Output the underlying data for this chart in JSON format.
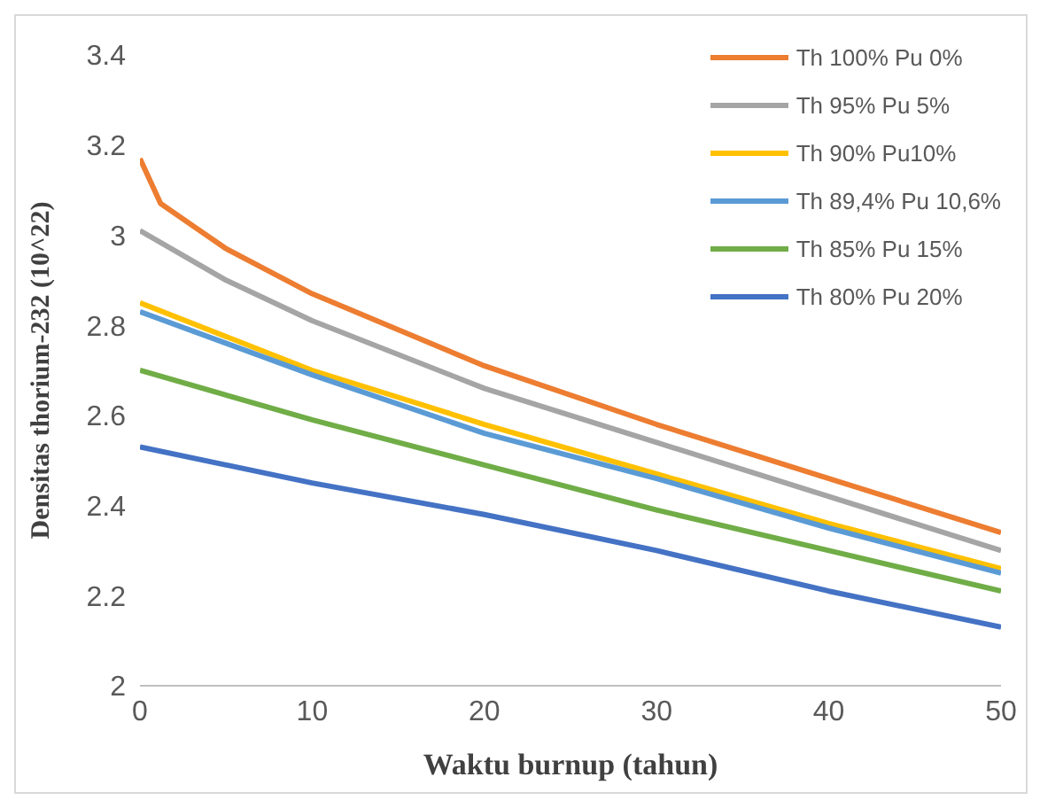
{
  "chart_data": {
    "type": "line",
    "xlabel": "Waktu burnup  (tahun)",
    "ylabel": "Densitas thorium-232  (10^22)",
    "xlim": [
      0,
      50
    ],
    "xticks": [
      0,
      10,
      20,
      30,
      40,
      50
    ],
    "ylim": [
      2,
      3.4
    ],
    "yticks": [
      2,
      2.2,
      2.4,
      2.6,
      2.8,
      3,
      3.2,
      3.4
    ],
    "grid": false,
    "legend": "top right",
    "marker": "none",
    "line_style": "solid",
    "series": [
      {
        "name": "Th 100%  Pu 0%",
        "color": "#ed7d31",
        "x": [
          0,
          1.2,
          5,
          10,
          20,
          30,
          40,
          50
        ],
        "values": [
          3.17,
          3.07,
          2.97,
          2.87,
          2.71,
          2.58,
          2.46,
          2.34
        ]
      },
      {
        "name": "Th 95%  Pu 5%",
        "color": "#a5a5a5",
        "x": [
          0,
          5,
          10,
          20,
          30,
          40,
          50
        ],
        "values": [
          3.01,
          2.9,
          2.81,
          2.66,
          2.54,
          2.42,
          2.3
        ]
      },
      {
        "name": "Th 90%  Pu10%",
        "color": "#ffc000",
        "x": [
          0,
          10,
          20,
          30,
          40,
          50
        ],
        "values": [
          2.85,
          2.7,
          2.58,
          2.47,
          2.36,
          2.26
        ]
      },
      {
        "name": "Th 89,4% Pu 10,6%",
        "color": "#5b9bd5",
        "x": [
          0,
          10,
          20,
          30,
          40,
          50
        ],
        "values": [
          2.83,
          2.69,
          2.56,
          2.46,
          2.35,
          2.25
        ]
      },
      {
        "name": "Th 85%  Pu 15%",
        "color": "#70ad47",
        "x": [
          0,
          10,
          20,
          30,
          40,
          50
        ],
        "values": [
          2.7,
          2.59,
          2.49,
          2.39,
          2.3,
          2.21
        ]
      },
      {
        "name": "Th 80%  Pu 20%",
        "color": "#4472c4",
        "x": [
          0,
          10,
          20,
          30,
          40,
          50
        ],
        "values": [
          2.53,
          2.45,
          2.38,
          2.3,
          2.21,
          2.13
        ]
      }
    ]
  }
}
